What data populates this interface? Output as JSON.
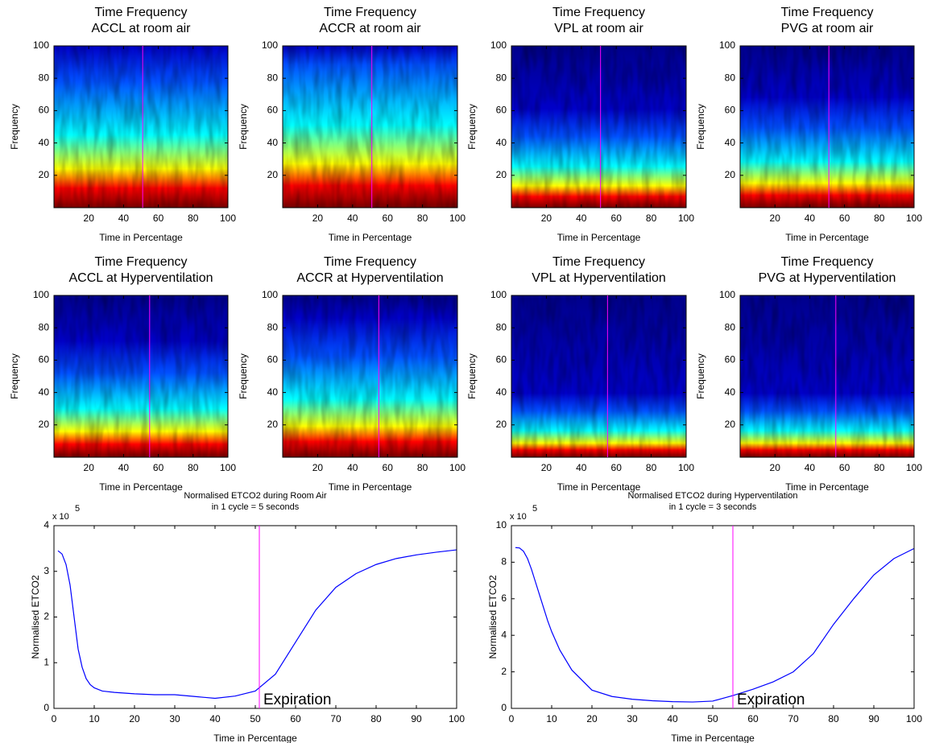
{
  "chart_data": [
    {
      "type": "spectrogram",
      "title": [
        "Time Frequency",
        "ACCL at room air"
      ],
      "xlabel": "Time in Percentage",
      "ylabel": "Frequency",
      "xlim": [
        0,
        100
      ],
      "ylim": [
        0,
        100
      ],
      "xticks": [
        20,
        40,
        60,
        80,
        100
      ],
      "yticks": [
        20,
        40,
        60,
        80,
        100
      ],
      "marker_x": 51,
      "marker_color": "#ff00ff"
    },
    {
      "type": "spectrogram",
      "title": [
        "Time Frequency",
        "ACCR at room air"
      ],
      "xlabel": "Time in Percentage",
      "ylabel": "Frequency",
      "xlim": [
        0,
        100
      ],
      "ylim": [
        0,
        100
      ],
      "xticks": [
        20,
        40,
        60,
        80,
        100
      ],
      "yticks": [
        20,
        40,
        60,
        80,
        100
      ],
      "marker_x": 51,
      "marker_color": "#ff00ff"
    },
    {
      "type": "spectrogram",
      "title": [
        "Time Frequency",
        "VPL at room air"
      ],
      "xlabel": "Time in Percentage",
      "ylabel": "Frequency",
      "xlim": [
        0,
        100
      ],
      "ylim": [
        0,
        100
      ],
      "xticks": [
        20,
        40,
        60,
        80,
        100
      ],
      "yticks": [
        20,
        40,
        60,
        80,
        100
      ],
      "marker_x": 51,
      "marker_color": "#ff00ff"
    },
    {
      "type": "spectrogram",
      "title": [
        "Time Frequency",
        "PVG at room air"
      ],
      "xlabel": "Time in Percentage",
      "ylabel": "Frequency",
      "xlim": [
        0,
        100
      ],
      "ylim": [
        0,
        100
      ],
      "xticks": [
        20,
        40,
        60,
        80,
        100
      ],
      "yticks": [
        20,
        40,
        60,
        80,
        100
      ],
      "marker_x": 51,
      "marker_color": "#ff00ff"
    },
    {
      "type": "spectrogram",
      "title": [
        "Time Frequency",
        "ACCL at Hyperventilation"
      ],
      "xlabel": "Time in Percentage",
      "ylabel": "Frequency",
      "xlim": [
        0,
        100
      ],
      "ylim": [
        0,
        100
      ],
      "xticks": [
        20,
        40,
        60,
        80,
        100
      ],
      "yticks": [
        20,
        40,
        60,
        80,
        100
      ],
      "marker_x": 55,
      "marker_color": "#ff00ff"
    },
    {
      "type": "spectrogram",
      "title": [
        "Time Frequency",
        "ACCR at Hyperventilation"
      ],
      "xlabel": "Time in Percentage",
      "ylabel": "Frequency",
      "xlim": [
        0,
        100
      ],
      "ylim": [
        0,
        100
      ],
      "xticks": [
        20,
        40,
        60,
        80,
        100
      ],
      "yticks": [
        20,
        40,
        60,
        80,
        100
      ],
      "marker_x": 55,
      "marker_color": "#ff00ff"
    },
    {
      "type": "spectrogram",
      "title": [
        "Time Frequency",
        "VPL at Hyperventilation"
      ],
      "xlabel": "Time in Percentage",
      "ylabel": "Frequency",
      "xlim": [
        0,
        100
      ],
      "ylim": [
        0,
        100
      ],
      "xticks": [
        20,
        40,
        60,
        80,
        100
      ],
      "yticks": [
        20,
        40,
        60,
        80,
        100
      ],
      "marker_x": 55,
      "marker_color": "#ff00ff"
    },
    {
      "type": "spectrogram",
      "title": [
        "Time Frequency",
        "PVG at Hyperventilation"
      ],
      "xlabel": "Time in Percentage",
      "ylabel": "Frequency",
      "xlim": [
        0,
        100
      ],
      "ylim": [
        0,
        100
      ],
      "xticks": [
        20,
        40,
        60,
        80,
        100
      ],
      "yticks": [
        20,
        40,
        60,
        80,
        100
      ],
      "marker_x": 55,
      "marker_color": "#ff00ff"
    },
    {
      "type": "line",
      "title": [
        "Normalised ETCO2 during Room Air",
        "in 1 cycle = 5 seconds"
      ],
      "xlabel": "Time in Percentage",
      "ylabel": "Normalised ETCO2",
      "yscale_label": "x 10",
      "yscale_exponent": "5",
      "xlim": [
        0,
        100
      ],
      "ylim": [
        0,
        4
      ],
      "xticks": [
        0,
        10,
        20,
        30,
        40,
        50,
        60,
        70,
        80,
        90,
        100
      ],
      "yticks": [
        0,
        1,
        2,
        3,
        4
      ],
      "x": [
        1,
        2,
        3,
        4,
        5,
        6,
        7,
        8,
        9,
        10,
        12,
        15,
        20,
        25,
        30,
        35,
        40,
        45,
        50,
        55,
        60,
        65,
        70,
        75,
        80,
        85,
        90,
        95,
        100
      ],
      "series": [
        {
          "color": "#0000ff",
          "values": [
            3.45,
            3.38,
            3.15,
            2.7,
            2.0,
            1.3,
            0.9,
            0.65,
            0.52,
            0.45,
            0.38,
            0.35,
            0.32,
            0.3,
            0.3,
            0.26,
            0.22,
            0.27,
            0.38,
            0.75,
            1.45,
            2.15,
            2.65,
            2.95,
            3.15,
            3.28,
            3.36,
            3.42,
            3.47
          ]
        }
      ],
      "marker_x": 51,
      "marker_color": "#ff00ff",
      "annotation": "Expiration"
    },
    {
      "type": "line",
      "title": [
        "Normalised ETCO2 during Hyperventilation",
        "in 1 cycle = 3 seconds"
      ],
      "xlabel": "Time in Percentage",
      "ylabel": "Normalised ETCO2",
      "yscale_label": "x 10",
      "yscale_exponent": "5",
      "xlim": [
        0,
        100
      ],
      "ylim": [
        0,
        10
      ],
      "xticks": [
        0,
        10,
        20,
        30,
        40,
        50,
        60,
        70,
        80,
        90,
        100
      ],
      "yticks": [
        0,
        2,
        4,
        6,
        8,
        10
      ],
      "x": [
        1,
        2,
        3,
        4,
        5,
        6,
        7,
        8,
        9,
        10,
        12,
        15,
        20,
        25,
        30,
        35,
        40,
        45,
        50,
        55,
        60,
        65,
        70,
        75,
        80,
        85,
        90,
        95,
        100
      ],
      "series": [
        {
          "color": "#0000ff",
          "values": [
            8.8,
            8.78,
            8.6,
            8.2,
            7.6,
            6.9,
            6.2,
            5.5,
            4.8,
            4.2,
            3.2,
            2.1,
            1.0,
            0.65,
            0.5,
            0.42,
            0.37,
            0.35,
            0.4,
            0.7,
            1.05,
            1.45,
            2.0,
            3.0,
            4.6,
            6.0,
            7.3,
            8.2,
            8.75
          ]
        }
      ],
      "marker_x": 55,
      "marker_color": "#ff00ff",
      "annotation": "Expiration"
    }
  ]
}
